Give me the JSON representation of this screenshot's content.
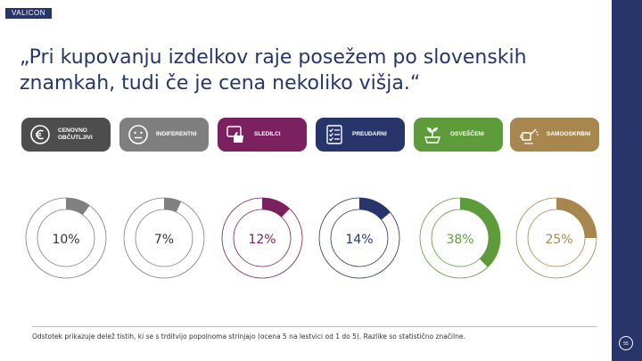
{
  "logo": "VALICON",
  "title": "„Pri kupovanju izdelkov raje posežem po slovenskih znamkah, tudi če je cena nekoliko višja.“",
  "segments": [
    {
      "label": "CENOVNO OBČUTLJIVI",
      "icon": "euro-icon",
      "color": "#4d4d4d"
    },
    {
      "label": "INDIFERENTNI",
      "icon": "neutral-face-icon",
      "color": "#7f7f7f"
    },
    {
      "label": "SLEDILCI",
      "icon": "thumbs-up-icon",
      "color": "#7b2160"
    },
    {
      "label": "PREUDARNI",
      "icon": "checklist-icon",
      "color": "#27356b"
    },
    {
      "label": "OSVEŠČENI",
      "icon": "sprout-icon",
      "color": "#5e9b3a"
    },
    {
      "label": "SAMOOSKRBNI",
      "icon": "watering-can-icon",
      "color": "#a8874f"
    }
  ],
  "chart_data": {
    "type": "pie",
    "categories": [
      "CENOVNO OBČUTLJIVI",
      "INDIFERENTNI",
      "SLEDILCI",
      "PREUDARNI",
      "OSVEŠČENI",
      "SAMOOSKRBNI"
    ],
    "values": [
      10,
      7,
      12,
      14,
      38,
      25
    ],
    "data_labels": [
      "10%",
      "7%",
      "12%",
      "14%",
      "38%",
      "25%"
    ],
    "colors": [
      "#808080",
      "#808080",
      "#7b2160",
      "#27356b",
      "#5e9b3a",
      "#a8874f"
    ],
    "label_colors": [
      "#333333",
      "#333333",
      "#7b2160",
      "#27356b",
      "#5e9b3a",
      "#a8874f"
    ],
    "ylim": [
      0,
      100
    ]
  },
  "footnote": "Odstotek prikazuje delež tistih, ki se s trditvijo popolnoma strinjajo (ocena 5 na lestvici od 1 do 5). Razlike so statistično značilne.",
  "page_number": "55"
}
